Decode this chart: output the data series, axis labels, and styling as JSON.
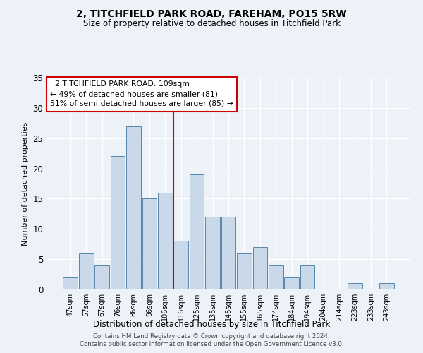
{
  "title1": "2, TITCHFIELD PARK ROAD, FAREHAM, PO15 5RW",
  "title2": "Size of property relative to detached houses in Titchfield Park",
  "xlabel": "Distribution of detached houses by size in Titchfield Park",
  "ylabel": "Number of detached properties",
  "annotation_line1": "  2 TITCHFIELD PARK ROAD: 109sqm  ",
  "annotation_line2": "← 49% of detached houses are smaller (81)",
  "annotation_line3": "51% of semi-detached houses are larger (85) →",
  "bar_labels": [
    "47sqm",
    "57sqm",
    "67sqm",
    "76sqm",
    "86sqm",
    "96sqm",
    "106sqm",
    "116sqm",
    "125sqm",
    "135sqm",
    "145sqm",
    "155sqm",
    "165sqm",
    "174sqm",
    "184sqm",
    "194sqm",
    "204sqm",
    "214sqm",
    "223sqm",
    "233sqm",
    "243sqm"
  ],
  "bar_values": [
    2,
    6,
    4,
    22,
    27,
    15,
    16,
    8,
    19,
    12,
    12,
    6,
    7,
    4,
    2,
    4,
    0,
    0,
    1,
    0,
    1
  ],
  "bar_color": "#c9d9ea",
  "bar_edgecolor": "#5588aa",
  "vline_index": 7,
  "vline_color": "#cc0000",
  "annotation_box_edgecolor": "#cc0000",
  "background_color": "#edf2f8",
  "grid_color": "#ffffff",
  "ylim": [
    0,
    35
  ],
  "yticks": [
    0,
    5,
    10,
    15,
    20,
    25,
    30,
    35
  ],
  "footer1": "Contains HM Land Registry data © Crown copyright and database right 2024.",
  "footer2": "Contains public sector information licensed under the Open Government Licence v3.0."
}
